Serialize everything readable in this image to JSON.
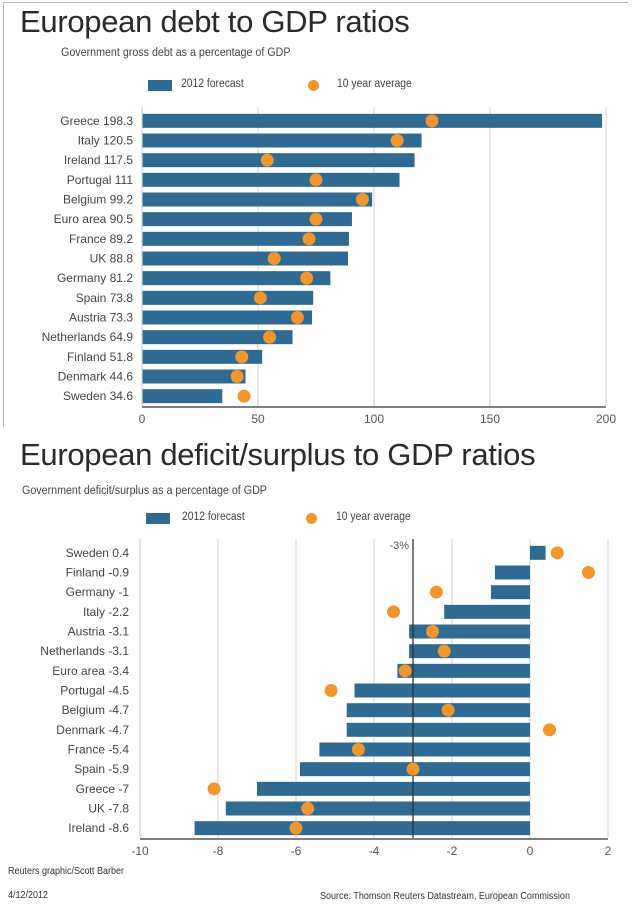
{
  "chart_data": [
    {
      "type": "bar",
      "orientation": "horizontal",
      "title": "European debt to GDP ratios",
      "subtitle": "Government gross debt as a percentage of GDP",
      "legend": {
        "bar_label": "2012 forecast",
        "dot_label": "10 year average",
        "placement": "top-center"
      },
      "categories": [
        "Greece 198.3",
        "Italy 120.5",
        "Ireland 117.5",
        "Portugal 111",
        "Belgium 99.2",
        "Euro area 90.5",
        "France 89.2",
        "UK 88.8",
        "Germany 81.2",
        "Spain 73.8",
        "Austria 73.3",
        "Netherlands 64.9",
        "Finland 51.8",
        "Denmark 44.6",
        "Sweden 34.6"
      ],
      "series": [
        {
          "name": "2012 forecast",
          "type": "bar",
          "values": [
            198.3,
            120.5,
            117.5,
            111,
            99.2,
            90.5,
            89.2,
            88.8,
            81.2,
            73.8,
            73.3,
            64.9,
            51.8,
            44.6,
            34.6
          ]
        },
        {
          "name": "10 year average",
          "type": "dot",
          "values": [
            125,
            110,
            54,
            75,
            95,
            75,
            72,
            57,
            71,
            51,
            67,
            55,
            43,
            41,
            44
          ]
        }
      ],
      "xlim": [
        0,
        200
      ],
      "xticks": [
        "0",
        "50",
        "100",
        "150",
        "200"
      ],
      "xtick_values": [
        0,
        50,
        100,
        150,
        200
      ],
      "grid": true,
      "colors": {
        "bar": "#2f6a93",
        "dot": "#f0962d",
        "grid": "#d8d8d8",
        "axis": "#555555"
      }
    },
    {
      "type": "bar",
      "orientation": "horizontal",
      "title": "European deficit/surplus to GDP ratios",
      "subtitle": "Government deficit/surplus as a percentage of GDP",
      "legend": {
        "bar_label": "2012 forecast",
        "dot_label": "10 year average",
        "placement": "top-center"
      },
      "categories": [
        "Sweden 0.4",
        "Finland -0.9",
        "Germany -1",
        "Italy -2.2",
        "Austria -3.1",
        "Netherlands -3.1",
        "Euro area -3.4",
        "Portugal -4.5",
        "Belgium -4.7",
        "Denmark -4.7",
        "France -5.4",
        "Spain -5.9",
        "Greece -7",
        "UK -7.8",
        "Ireland -8.6"
      ],
      "series": [
        {
          "name": "2012 forecast",
          "type": "bar",
          "values": [
            0.4,
            -0.9,
            -1,
            -2.2,
            -3.1,
            -3.1,
            -3.4,
            -4.5,
            -4.7,
            -4.7,
            -5.4,
            -5.9,
            -7,
            -7.8,
            -8.6
          ]
        },
        {
          "name": "10 year average",
          "type": "dot",
          "values": [
            0.7,
            1.5,
            -2.4,
            -3.5,
            -2.5,
            -2.2,
            -3.2,
            -5.1,
            -2.1,
            0.5,
            -4.4,
            -3.0,
            -8.1,
            -5.7,
            -6.0
          ]
        }
      ],
      "xlim": [
        -10,
        2
      ],
      "xticks": [
        "-10",
        "-8",
        "-6",
        "-4",
        "-2",
        "0",
        "2"
      ],
      "xtick_values": [
        -10,
        -8,
        -6,
        -4,
        -2,
        0,
        2
      ],
      "reference_line": {
        "value": -3,
        "label": "-3%"
      },
      "grid": true,
      "colors": {
        "bar": "#2f6a93",
        "dot": "#f0962d",
        "grid": "#d8d8d8",
        "axis": "#555555",
        "reference": "#333333"
      }
    }
  ],
  "footer": {
    "credit": "Reuters graphic/Scott Barber",
    "date": "4/12/2012",
    "source": "Source: Thomson Reuters Datastream, European Commission"
  }
}
